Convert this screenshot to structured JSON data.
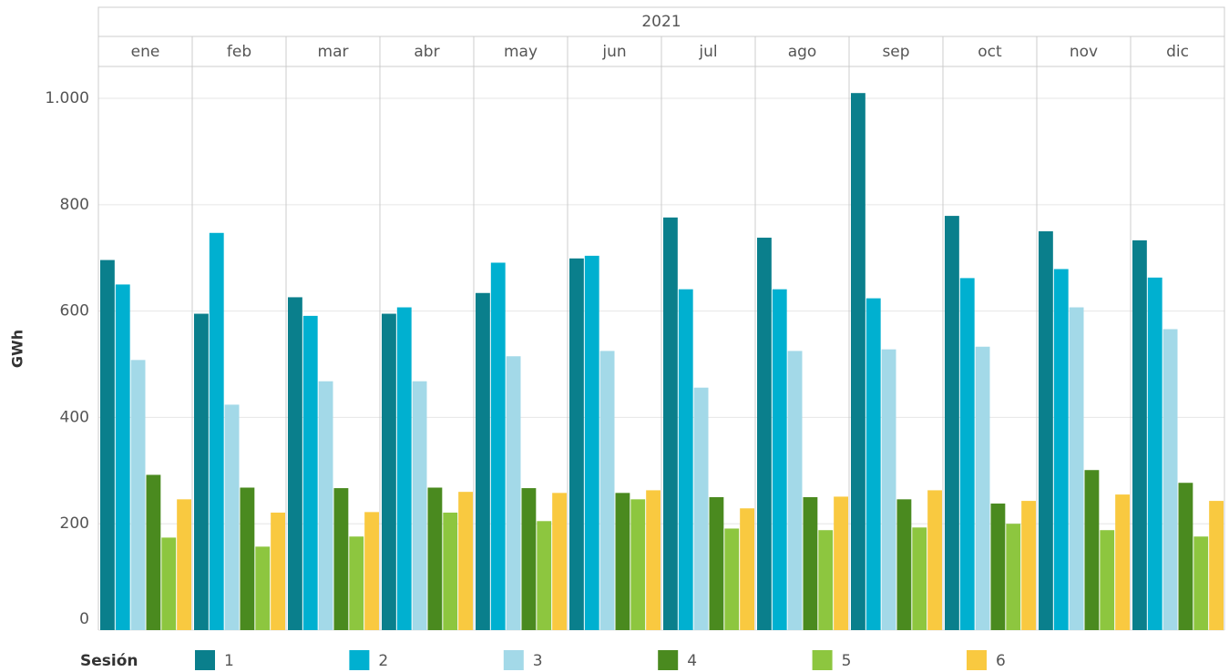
{
  "chart_data": {
    "type": "bar",
    "column_header": "2021",
    "y_label": "GWh",
    "legend_title": "Sesión",
    "categories": [
      "ene",
      "feb",
      "mar",
      "abr",
      "may",
      "jun",
      "jul",
      "ago",
      "sep",
      "oct",
      "nov",
      "dic"
    ],
    "series": [
      {
        "name": "1",
        "color": "#0a7f8c",
        "values": [
          696,
          595,
          626,
          595,
          634,
          699,
          776,
          738,
          1010,
          779,
          750,
          733
        ]
      },
      {
        "name": "2",
        "color": "#00b0d0",
        "values": [
          650,
          747,
          591,
          607,
          691,
          704,
          641,
          641,
          624,
          662,
          679,
          663
        ]
      },
      {
        "name": "3",
        "color": "#a3d9e8",
        "values": [
          508,
          424,
          468,
          468,
          515,
          525,
          456,
          525,
          528,
          533,
          607,
          566
        ]
      },
      {
        "name": "4",
        "color": "#4a8a1f",
        "values": [
          292,
          268,
          267,
          268,
          267,
          258,
          250,
          250,
          246,
          238,
          301,
          277
        ]
      },
      {
        "name": "5",
        "color": "#8dc63f",
        "values": [
          174,
          157,
          176,
          221,
          205,
          246,
          191,
          188,
          193,
          200,
          188,
          176
        ]
      },
      {
        "name": "6",
        "color": "#f9c940",
        "values": [
          246,
          221,
          222,
          260,
          258,
          263,
          229,
          251,
          263,
          243,
          255,
          243
        ]
      }
    ],
    "ylim": [
      0,
      1060
    ],
    "yticks": [
      0,
      200,
      400,
      600,
      800,
      {
        "value": 1000,
        "label": "1.000"
      }
    ],
    "grid": true
  }
}
